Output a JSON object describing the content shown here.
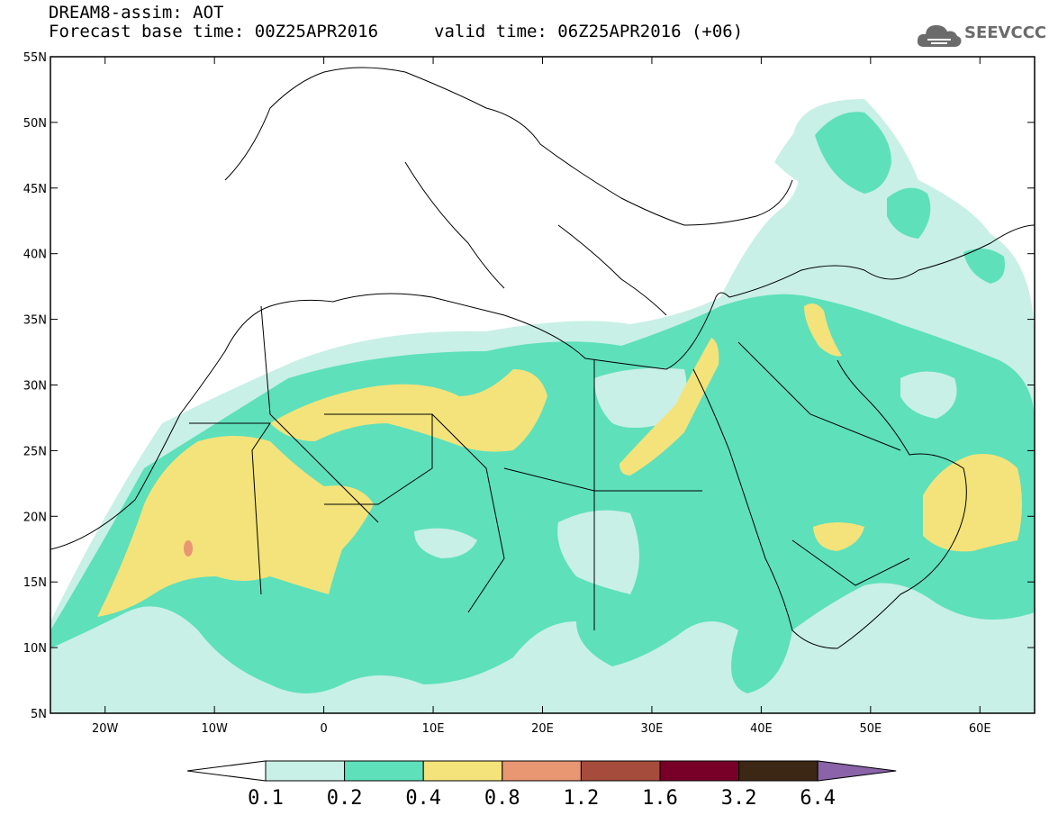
{
  "header": {
    "line1": "DREAM8-assim: AOT",
    "line2_base": "Forecast base time: 00Z25APR2016",
    "line2_valid": "valid time: 06Z25APR2016 (+06)"
  },
  "logo": {
    "text": "SEEVCCC",
    "icon": "cloud-icon"
  },
  "map": {
    "lon_range": [
      -25,
      65
    ],
    "lat_range": [
      5,
      55
    ],
    "x_ticks": [
      "20W",
      "10W",
      "0",
      "10E",
      "20E",
      "30E",
      "40E",
      "50E",
      "60E"
    ],
    "x_tick_values": [
      -20,
      -10,
      0,
      10,
      20,
      30,
      40,
      50,
      60
    ],
    "y_ticks": [
      "55N",
      "50N",
      "45N",
      "40N",
      "35N",
      "30N",
      "25N",
      "20N",
      "15N",
      "10N",
      "5N"
    ],
    "y_tick_values": [
      55,
      50,
      45,
      40,
      35,
      30,
      25,
      20,
      15,
      10,
      5
    ]
  },
  "colorbar": {
    "labels": [
      "0.1",
      "0.2",
      "0.4",
      "0.8",
      "1.2",
      "1.6",
      "3.2",
      "6.4"
    ],
    "colors": [
      "#ffffff",
      "#c8f0e6",
      "#5ee0bb",
      "#f4e37a",
      "#e99672",
      "#a54c3c",
      "#780028",
      "#3b2714",
      "#8a63a8"
    ]
  }
}
